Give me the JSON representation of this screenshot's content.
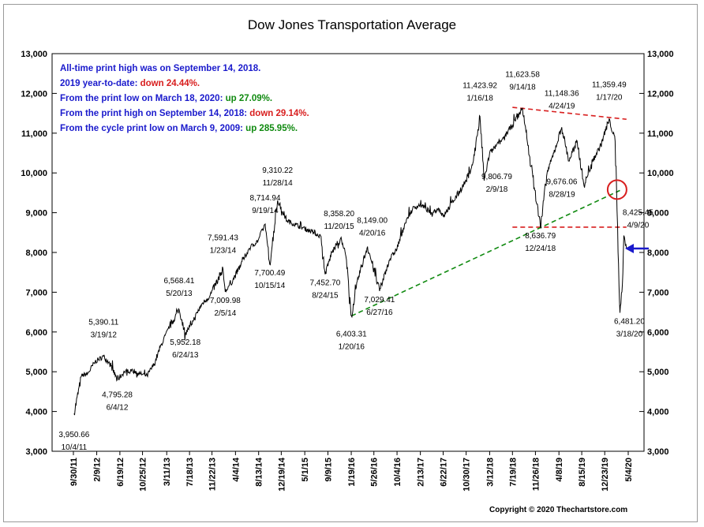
{
  "chart_data": {
    "type": "line",
    "title": "Dow Jones Transportation Average",
    "xlabel": "",
    "ylabel": "",
    "ylim": [
      3000,
      13000
    ],
    "yticks": [
      "3,000",
      "4,000",
      "5,000",
      "6,000",
      "7,000",
      "8,000",
      "9,000",
      "10,000",
      "11,000",
      "12,000",
      "13,000"
    ],
    "xticks": [
      "9/30/11",
      "2/9/12",
      "6/19/12",
      "10/25/12",
      "3/11/13",
      "7/18/13",
      "11/22/13",
      "4/4/14",
      "8/13/14",
      "12/19/14",
      "5/1/15",
      "9/9/15",
      "1/19/16",
      "5/26/16",
      "10/4/16",
      "2/13/17",
      "6/22/17",
      "10/30/17",
      "3/12/18",
      "7/19/18",
      "11/26/18",
      "4/8/19",
      "8/15/19",
      "12/23/19",
      "5/4/20"
    ],
    "grid": false,
    "series": [
      {
        "x": [
          "10/4/11",
          "11/15/11",
          "12/20/11",
          "1/31/12",
          "3/19/12",
          "4/30/12",
          "6/4/12",
          "7/15/12",
          "8/25/12",
          "10/10/12",
          "11/20/12",
          "12/31/12",
          "2/10/13",
          "3/25/13",
          "5/20/13",
          "6/24/13",
          "8/10/13",
          "9/25/13",
          "11/10/13",
          "1/23/14",
          "2/5/14",
          "3/20/14",
          "5/5/14",
          "6/20/14",
          "8/10/14",
          "9/19/14",
          "10/15/14",
          "11/28/14",
          "1/20/15",
          "3/10/15",
          "5/1/15",
          "6/20/15",
          "8/1/15",
          "8/24/15",
          "10/1/15",
          "11/20/15",
          "12/20/15",
          "1/20/16",
          "3/1/16",
          "4/20/16",
          "6/27/16",
          "8/20/16",
          "10/4/16",
          "11/15/16",
          "12/31/16",
          "2/13/17",
          "4/15/17",
          "5/30/17",
          "6/22/17",
          "8/20/17",
          "10/30/17",
          "12/10/17",
          "1/16/18",
          "2/9/18",
          "3/12/18",
          "5/15/18",
          "7/19/18",
          "9/14/18",
          "10/25/18",
          "12/24/18",
          "1/31/19",
          "3/10/19",
          "4/24/19",
          "6/3/19",
          "7/20/19",
          "8/28/19",
          "10/15/19",
          "12/1/19",
          "1/17/20",
          "2/20/20",
          "3/18/20",
          "4/1/20",
          "4/9/20",
          "4/24/20"
        ],
        "values": [
          3950.66,
          4900,
          4950,
          5250,
          5390.11,
          5150,
          4795.28,
          5000,
          5050,
          4950,
          4900,
          5200,
          5700,
          6100,
          6568.41,
          5952.18,
          6300,
          6700,
          6900,
          7591.43,
          7009.98,
          7300,
          7700,
          8100,
          8300,
          8714.94,
          7700.49,
          9310.22,
          8800,
          8700,
          8600,
          8500,
          8400,
          7452.7,
          8000,
          8358.2,
          7900,
          6403.31,
          7400,
          8149,
          7029.41,
          7800,
          8100,
          8700,
          9100,
          9200,
          9000,
          9100,
          8900,
          9300,
          9806.79,
          10300,
          11423.92,
          9806.79,
          10500,
          10800,
          11200,
          11623.58,
          10400,
          8636.79,
          10000,
          10500,
          11148.36,
          10300,
          10800,
          9676.06,
          10300,
          10700,
          11359.49,
          10800,
          6481.2,
          7200,
          8425.45,
          8100
        ]
      }
    ],
    "annotations": [
      {
        "date": "10/4/11",
        "value": "3,950.66"
      },
      {
        "date": "3/19/12",
        "value": "5,390.11"
      },
      {
        "date": "6/4/12",
        "value": "4,795.28"
      },
      {
        "date": "5/20/13",
        "value": "6,568.41"
      },
      {
        "date": "6/24/13",
        "value": "5,952.18"
      },
      {
        "date": "1/23/14",
        "value": "7,591.43"
      },
      {
        "date": "2/5/14",
        "value": "7,009.98"
      },
      {
        "date": "9/19/14",
        "value": "8,714.94"
      },
      {
        "date": "10/15/14",
        "value": "7,700.49"
      },
      {
        "date": "11/28/14",
        "value": "9,310.22"
      },
      {
        "date": "8/24/15",
        "value": "7,452.70"
      },
      {
        "date": "11/20/15",
        "value": "8,358.20"
      },
      {
        "date": "1/20/16",
        "value": "6,403.31"
      },
      {
        "date": "4/20/16",
        "value": "8,149.00"
      },
      {
        "date": "6/27/16",
        "value": "7,029.41"
      },
      {
        "date": "1/16/18",
        "value": "11,423.92"
      },
      {
        "date": "2/9/18",
        "value": "9,806.79"
      },
      {
        "date": "9/14/18",
        "value": "11,623.58"
      },
      {
        "date": "12/24/18",
        "value": "8,636.79"
      },
      {
        "date": "4/24/19",
        "value": "11,148.36"
      },
      {
        "date": "8/28/19",
        "value": "9,676.06"
      },
      {
        "date": "1/17/20",
        "value": "11,359.49"
      },
      {
        "date": "3/18/20",
        "value": "6,481.20"
      },
      {
        "date": "4/9/20",
        "value": "8,425.45"
      }
    ],
    "trendlines": [
      {
        "style": "dashed",
        "color": "#d81e1e",
        "from": {
          "date": "7/19/18",
          "value": 11650
        },
        "to": {
          "date": "4/24/20",
          "value": 11350
        }
      },
      {
        "style": "dashed",
        "color": "#d81e1e",
        "from": {
          "date": "7/19/18",
          "value": 8636.79
        },
        "to": {
          "date": "4/24/20",
          "value": 8636.79
        }
      },
      {
        "style": "dashed",
        "color": "#108a10",
        "from": {
          "date": "1/20/16",
          "value": 6403.31
        },
        "to": {
          "date": "3/18/20",
          "value": 9560
        }
      }
    ]
  },
  "notes": [
    {
      "parts": [
        {
          "text": "All-time print high was on September 14, 2018.",
          "color": "#1a1acc"
        }
      ]
    },
    {
      "parts": [
        {
          "text": "2019 year-to-date:",
          "color": "#1a1acc"
        },
        {
          "text": " down 24.44%.",
          "color": "#d81e1e"
        }
      ]
    },
    {
      "parts": [
        {
          "text": "From the print low on March 18, 2020:",
          "color": "#1a1acc"
        },
        {
          "text": "  up 27.09%.",
          "color": "#108a10"
        }
      ]
    },
    {
      "parts": [
        {
          "text": "From the print high on September 14, 2018:",
          "color": "#1a1acc"
        },
        {
          "text": "  down 29.14%.",
          "color": "#d81e1e"
        }
      ]
    },
    {
      "parts": [
        {
          "text": "From the cycle print low on March 9, 2009:",
          "color": "#1a1acc"
        },
        {
          "text": "  up 285.95%.",
          "color": "#108a10"
        }
      ]
    }
  ],
  "markers": {
    "circle_color": "#d81e1e",
    "arrow_color": "#1a1acc"
  },
  "copyright": "Copyright © 2020 Thechartstore.com"
}
